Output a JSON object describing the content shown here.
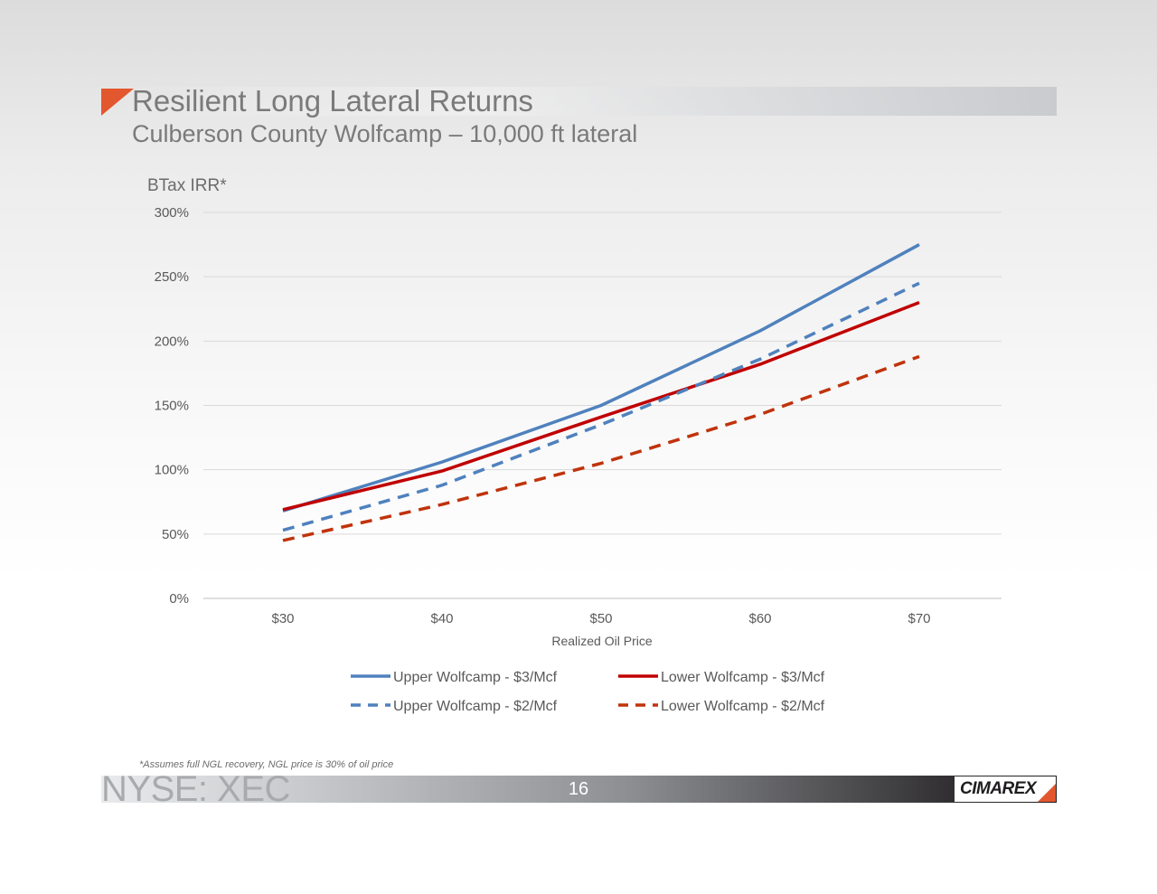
{
  "slide": {
    "title": "Resilient Long Lateral Returns",
    "subtitle": "Culberson County Wolfcamp – 10,000 ft lateral",
    "footnote": "*Assumes full NGL recovery, NGL price is 30% of oil price",
    "ticker": "NYSE: XEC",
    "page_number": "16",
    "logo_text": "CIMAREX",
    "accent_color": "#e2572e"
  },
  "chart_data": {
    "type": "line",
    "ylabel": "BTax IRR*",
    "xlabel": "Realized Oil Price",
    "categories": [
      "$30",
      "$40",
      "$50",
      "$60",
      "$70"
    ],
    "yticks": [
      "0%",
      "50%",
      "100%",
      "150%",
      "200%",
      "250%",
      "300%"
    ],
    "ylim": [
      0,
      300
    ],
    "grid": "horizontal",
    "legend_position": "bottom",
    "series": [
      {
        "name": "Upper Wolfcamp - $3/Mcf",
        "values": [
          68,
          106,
          150,
          208,
          275
        ],
        "color": "#4f81bd",
        "style": "solid"
      },
      {
        "name": "Lower Wolfcamp - $3/Mcf",
        "values": [
          69,
          99,
          141,
          182,
          230
        ],
        "color": "#c00000",
        "style": "solid"
      },
      {
        "name": "Upper Wolfcamp - $2/Mcf",
        "values": [
          53,
          88,
          135,
          186,
          245
        ],
        "color": "#4f81bd",
        "style": "dashed"
      },
      {
        "name": "Lower Wolfcamp - $2/Mcf",
        "values": [
          45,
          73,
          105,
          143,
          188
        ],
        "color": "#c0330c",
        "style": "dashed"
      }
    ]
  }
}
